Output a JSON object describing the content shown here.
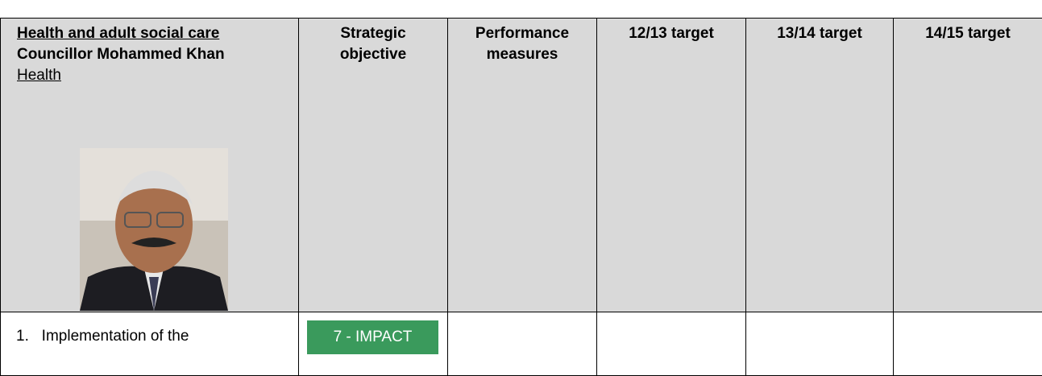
{
  "table": {
    "header": {
      "portfolio": "Health and adult social care",
      "councillor": "Councillor Mohammed Khan",
      "section": "Health",
      "columns": [
        "Strategic objective",
        "Performance measures",
        "12/13 target",
        "13/14 target",
        "14/15 target"
      ]
    },
    "rows": [
      {
        "item": "1.   Implementation of the",
        "objective": "7 - IMPACT"
      }
    ]
  }
}
